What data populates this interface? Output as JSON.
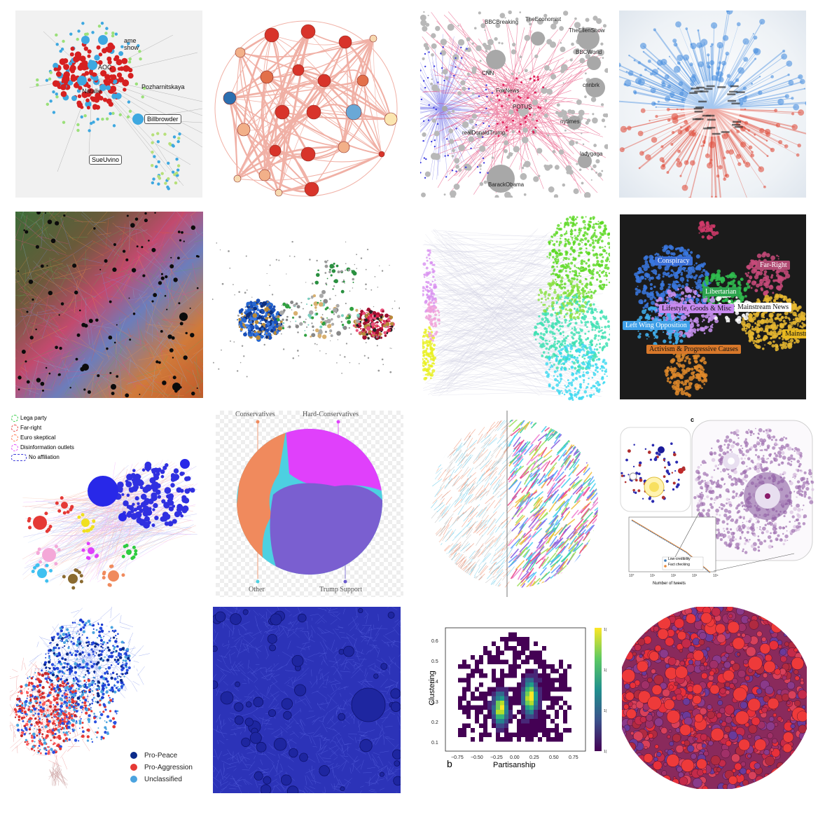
{
  "tiles": {
    "t1": {
      "labels": [
        "Billbrowder",
        "SueUvino",
        "AOC",
        "Nataliе",
        "Pozharnitskaya",
        "show",
        "ame"
      ]
    },
    "t3": {
      "labels": [
        "BBCBreaking",
        "TheEconomist",
        "TheEllenShow",
        "BBCWorld",
        "CNN",
        "FoxNews",
        "POTUS",
        "cnnbrk",
        "nytimes",
        "realDonaldTrump",
        "ladygaga",
        "BarackObama"
      ]
    },
    "t8": {
      "labels": [
        "Conspiracy",
        "Far-Right",
        "Libertarian",
        "Lifestyle, Goods & Misc",
        "Mainstream News",
        "Left Wing Opposition",
        "Activism & Progressive Causes",
        "Mainstream"
      ]
    },
    "t9": {
      "legend": [
        "Lega party",
        "Far-right",
        "Euro skeptical",
        "Disinformation outlets",
        "No affiliation"
      ],
      "legend_colors": [
        "#2ecc40",
        "#e53935",
        "#ff7043",
        "#e040fb",
        "#3b3bd9"
      ]
    },
    "t10": {
      "top_left": "Conservatives",
      "top_right": "Hard-Conservatives",
      "bottom_left": "Other",
      "bottom_right": "Trump Support"
    },
    "t12": {
      "panel_letter": "c",
      "xlabel": "Number of tweets",
      "legend": [
        "Low-credibility",
        "Fact checking"
      ],
      "xticks": [
        "10°",
        "10¹",
        "10²",
        "10³",
        "10⁴"
      ]
    },
    "t13": {
      "legend": [
        "Pro-Peace",
        "Pro-Aggression",
        "Unclassified"
      ],
      "legend_colors": [
        "#0b2a8a",
        "#e53935",
        "#4aa3df"
      ]
    },
    "t15": {
      "xlabel": "Partisanship",
      "ylabel": "Clustering",
      "panel_letter": "b",
      "xticks": [
        "−0.75",
        "−0.50",
        "−0.25",
        "0.00",
        "0.25",
        "0.50",
        "0.75"
      ],
      "yticks": [
        "0.1",
        "0.2",
        "0.3",
        "0.4",
        "0.5",
        "0.6"
      ],
      "cbar_ticks": [
        "1(",
        "1(",
        "1(",
        "1("
      ]
    }
  }
}
